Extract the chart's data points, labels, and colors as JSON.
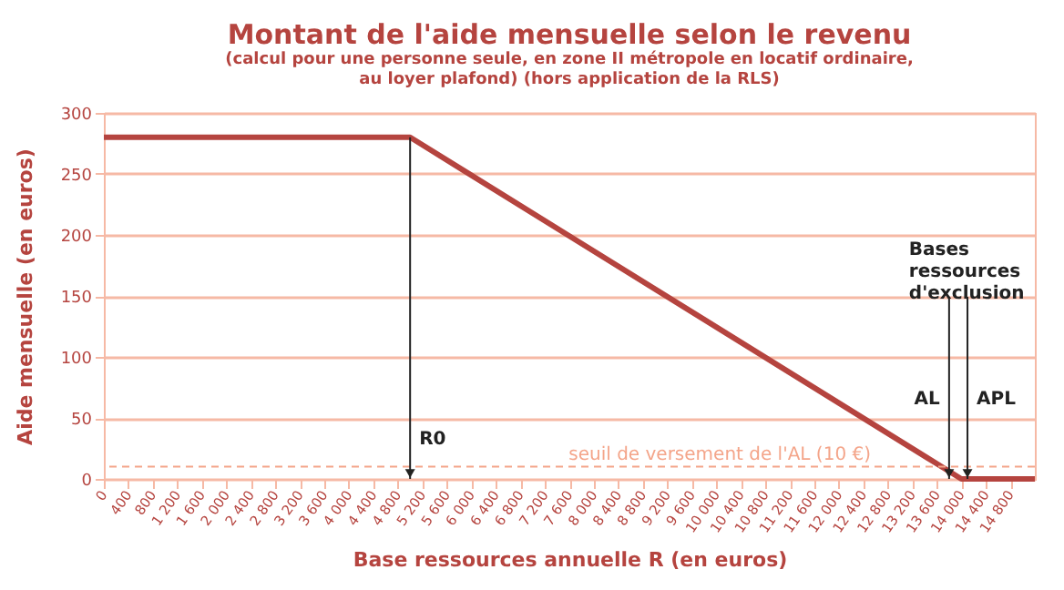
{
  "chart_data": {
    "type": "line",
    "title": "Montant de l'aide mensuelle selon le revenu",
    "subtitle": "(calcul pour une personne seule, en zone II métropole en locatif ordinaire,\nau loyer plafond) (hors application de la RLS)",
    "xlabel": "Base ressources annuelle R (en euros)",
    "ylabel": "Aide mensuelle (en euros)",
    "x": [
      0,
      5000,
      14000,
      15200
    ],
    "series": [
      {
        "color": "#b5443f",
        "values": [
          280,
          280,
          0,
          0
        ]
      }
    ],
    "xlim": [
      0,
      15200
    ],
    "ylim": [
      0,
      300
    ],
    "xticks": [
      0,
      400,
      800,
      {
        "value": 1200,
        "label": "1 200"
      },
      {
        "value": 1600,
        "label": "1 600"
      },
      {
        "value": 2000,
        "label": "2 000"
      },
      {
        "value": 2400,
        "label": "2 400"
      },
      {
        "value": 2800,
        "label": "2 800"
      },
      {
        "value": 3200,
        "label": "3 200"
      },
      {
        "value": 3600,
        "label": "3 600"
      },
      {
        "value": 4000,
        "label": "4 000"
      },
      {
        "value": 4400,
        "label": "4 400"
      },
      {
        "value": 4800,
        "label": "4 800"
      },
      {
        "value": 5200,
        "label": "5 200"
      },
      {
        "value": 5600,
        "label": "5 600"
      },
      {
        "value": 6000,
        "label": "6 000"
      },
      {
        "value": 6400,
        "label": "6 400"
      },
      {
        "value": 6800,
        "label": "6 800"
      },
      {
        "value": 7200,
        "label": "7 200"
      },
      {
        "value": 7600,
        "label": "7 600"
      },
      {
        "value": 8000,
        "label": "8 000"
      },
      {
        "value": 8400,
        "label": "8 400"
      },
      {
        "value": 8800,
        "label": "8 800"
      },
      {
        "value": 9200,
        "label": "9 200"
      },
      {
        "value": 9600,
        "label": "9 600"
      },
      {
        "value": 10000,
        "label": "10 000"
      },
      {
        "value": 10400,
        "label": "10 400"
      },
      {
        "value": 10800,
        "label": "10 800"
      },
      {
        "value": 11200,
        "label": "11 200"
      },
      {
        "value": 11600,
        "label": "11 600"
      },
      {
        "value": 12000,
        "label": "12 000"
      },
      {
        "value": 12400,
        "label": "12 400"
      },
      {
        "value": 12800,
        "label": "12 800"
      },
      {
        "value": 13200,
        "label": "13 200"
      },
      {
        "value": 13600,
        "label": "13 600"
      },
      {
        "value": 14000,
        "label": "14 000"
      },
      {
        "value": 14400,
        "label": "14 400"
      },
      {
        "value": 14800,
        "label": "14 800"
      }
    ],
    "yticks": [
      0,
      50,
      100,
      150,
      200,
      250,
      300
    ],
    "grid": "y",
    "ref_lines": [
      {
        "axis": "y",
        "value": 10,
        "label": "seuil de versement de l'AL (10 €)",
        "color": "#f4a58a",
        "line_style": "dashed"
      },
      {
        "axis": "x",
        "value": 5000,
        "label": "R0",
        "color": "#222222"
      },
      {
        "axis": "x",
        "value": 13800,
        "label": "AL",
        "color": "#222222"
      },
      {
        "axis": "x",
        "value": 14100,
        "label": "APL",
        "color": "#222222"
      }
    ],
    "annotations": [
      "Bases ressources d'exclusion"
    ]
  }
}
